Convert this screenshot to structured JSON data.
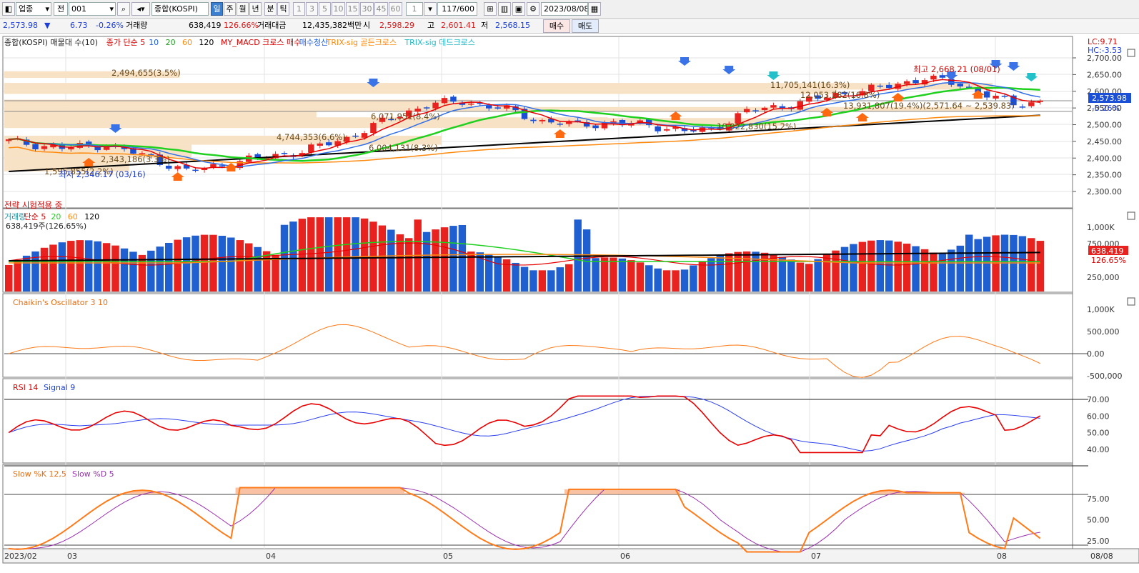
{
  "toolbar": {
    "market": "업종",
    "prefix": "전",
    "code": "001",
    "name": "종합(KOSPI)",
    "periods": [
      "일",
      "주",
      "월",
      "년",
      "분",
      "틱"
    ],
    "minutes": [
      "1",
      "3",
      "5",
      "10",
      "15",
      "30",
      "45",
      "60"
    ],
    "tick_value": "1",
    "count": "117/600",
    "date": "2023/08/08"
  },
  "quote": {
    "price": "2,573.98",
    "arrow": "▼",
    "change": "6.73",
    "change_pct": "-0.26%",
    "vol_label": "거래량",
    "volume": "638,419",
    "vol_pct": "126.66%",
    "amt_label": "거래대금",
    "amount": "12,435,382백만",
    "open_label": "시",
    "open": "2,598.29",
    "high_label": "고",
    "high": "2,601.41",
    "low_label": "저",
    "low": "2,568.15",
    "buy": "매수",
    "sell": "매도"
  },
  "colors": {
    "up": "#e8231f",
    "down": "#1b4fd6",
    "ma5": "#e80000",
    "ma10": "#2f6fe8",
    "ma20": "#1fd01f",
    "ma60": "#ff8a10",
    "ma120": "#000000"
  },
  "price_panel": {
    "legend": [
      {
        "text": "종합(KOSPI) 매물대 수(10)",
        "color": "#222"
      },
      {
        "text": "종가 단순 5",
        "color": "#d40000"
      },
      {
        "text": "10",
        "color": "#1f5fe0"
      },
      {
        "text": "20",
        "color": "#1fa01f"
      },
      {
        "text": "60",
        "color": "#ff8a10"
      },
      {
        "text": "120",
        "color": "#000"
      },
      {
        "text": "MY_MACD 크로스 매수",
        "color": "#d40000"
      },
      {
        "text": "매수청산",
        "color": "#1f5fe0"
      },
      {
        "text": "TRIX-sig 골든크로스",
        "color": "#ff8a10"
      },
      {
        "text": "TRIX-sig 데드크로스",
        "color": "#22b8c8"
      }
    ],
    "lc": "LC:9.71",
    "hc": "HC:-3.53",
    "axis": [
      "2,700.00",
      "2,650.00",
      "2,600.00",
      "2,550.00",
      "2,500.00",
      "2,450.00",
      "2,400.00",
      "2,350.00",
      "2,300.00"
    ],
    "current_tag": "2,573.98",
    "current_pct": "-0.26%",
    "volume_profile": [
      "2,494,655(3.5%)",
      "11,705,141(16.3%)",
      "12,053,282(16.8%)",
      "6,071,951(8.4%)",
      "13,931,807(19.4%)(2,571.64 ~ 2,539.83)",
      "4,744,353(6.6%)",
      "10,922,830(15.2%)",
      "6,004,131(8.3%)",
      "2,343,186(3.3%)",
      "1,595,855(2.2%)"
    ],
    "max_label": "최고 2,668.21 (08/01)",
    "min_label": "최저 2,346.17 (03/16)",
    "strategy": "전략 시험적용 중"
  },
  "volume_panel": {
    "legend": [
      {
        "text": "거래량",
        "color": "#1f8fa0"
      },
      {
        "text": "단순 5",
        "color": "#d40000"
      },
      {
        "text": "20",
        "color": "#1fd01f"
      },
      {
        "text": "60",
        "color": "#ff8a10"
      },
      {
        "text": "120",
        "color": "#000"
      }
    ],
    "sub": "638,419주(126.65%)",
    "axis": [
      "1,000K",
      "750,000",
      "250,000"
    ],
    "tag": "638,419",
    "tag_pct": "126.65%"
  },
  "chaikin_panel": {
    "legend": "Chaikin's Oscillator 3 10",
    "axis": [
      "1,000K",
      "500,000",
      "0.00",
      "-500,000"
    ]
  },
  "rsi_panel": {
    "legend1": "RSI 14",
    "legend2": "Signal 9",
    "axis": [
      "70.00",
      "60.00",
      "50.00",
      "40.00"
    ]
  },
  "stoch_panel": {
    "legend1": "Slow %K 12,5",
    "legend2": "Slow %D 5",
    "axis": [
      "75.00",
      "50.00",
      "25.00"
    ]
  },
  "x_axis": [
    "2023/02",
    "03",
    "04",
    "05",
    "06",
    "07",
    "08",
    "08/08"
  ]
}
